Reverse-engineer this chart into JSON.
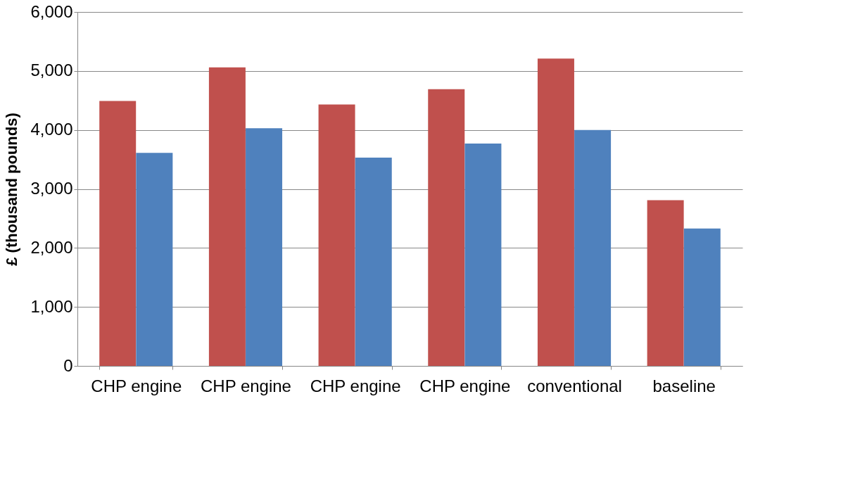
{
  "chart_data": {
    "type": "bar",
    "ylabel": "£ (thousand pounds)",
    "categories": [
      "CHP engine",
      "CHP engine",
      "CHP engine",
      "CHP engine",
      "conventional",
      "baseline"
    ],
    "series": [
      {
        "color": "#c0504d",
        "values": [
          4490,
          5060,
          4430,
          4690,
          5210,
          2810
        ]
      },
      {
        "color": "#4f81bd",
        "values": [
          3610,
          4030,
          3530,
          3770,
          4000,
          2330
        ]
      }
    ],
    "ylim": [
      0,
      6000
    ],
    "yticks": [
      {
        "value": 0,
        "label": "0"
      },
      {
        "value": 1000,
        "label": "1,000"
      },
      {
        "value": 2000,
        "label": "2,000"
      },
      {
        "value": 3000,
        "label": "3,000"
      },
      {
        "value": 4000,
        "label": "4,000"
      },
      {
        "value": 5000,
        "label": "5,000"
      },
      {
        "value": 6000,
        "label": "6,000"
      }
    ],
    "grid": "y"
  }
}
